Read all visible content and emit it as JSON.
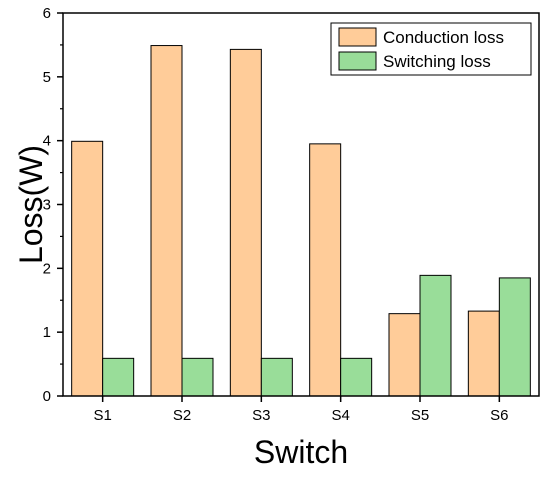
{
  "chart_data": {
    "type": "bar",
    "xlabel": "Switch",
    "ylabel": "Loss(W)",
    "categories": [
      "S1",
      "S2",
      "S3",
      "S4",
      "S5",
      "S6"
    ],
    "ylim": [
      0,
      6
    ],
    "yticks": [
      "0",
      "1",
      "2",
      "3",
      "4",
      "5",
      "6"
    ],
    "legend_position": "top-right",
    "grid": false,
    "series": [
      {
        "name": "Conduction loss",
        "color": "#FFCC99",
        "values": [
          3.99,
          5.49,
          5.43,
          3.95,
          1.29,
          1.33
        ]
      },
      {
        "name": "Switching loss",
        "color": "#99DD99",
        "values": [
          0.59,
          0.59,
          0.59,
          0.59,
          1.89,
          1.85
        ]
      }
    ]
  }
}
